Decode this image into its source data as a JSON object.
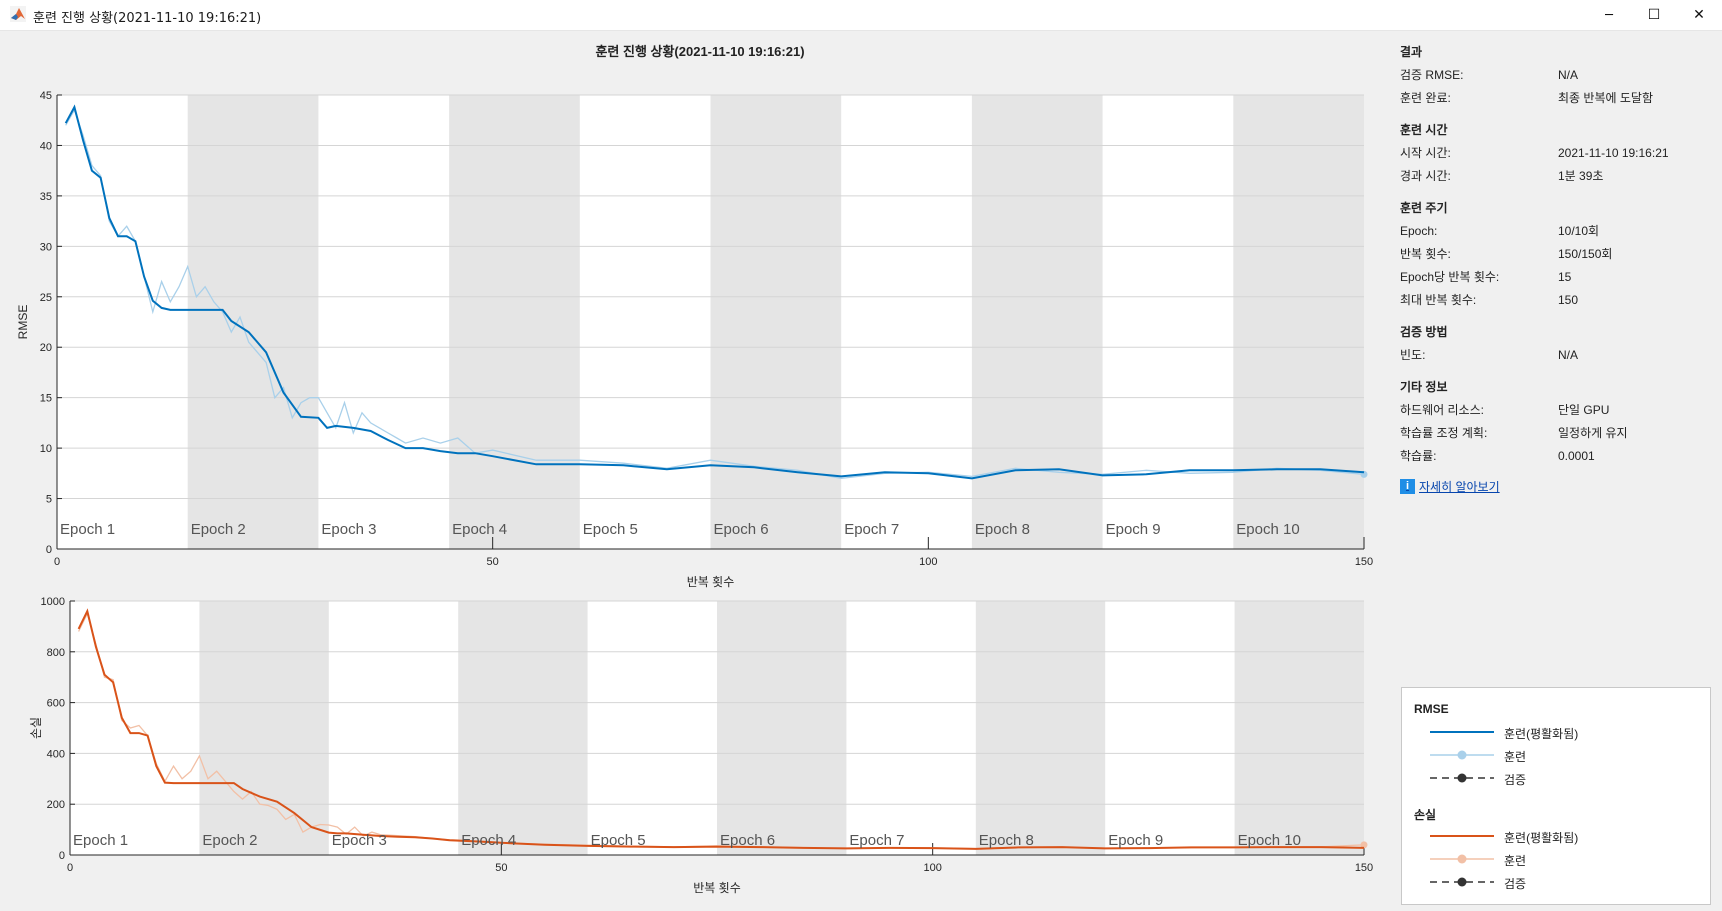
{
  "window": {
    "title": "훈련 진행 상황(2021-11-10 19:16:21)",
    "controls": {
      "minimize": "─",
      "maximize": "☐",
      "close": "✕"
    }
  },
  "plot_title": "훈련 진행 상황(2021-11-10 19:16:21)",
  "colors": {
    "rmse_smoothed": "#0072bd",
    "rmse_raw": "#a9d0ea",
    "loss_smoothed": "#d95319",
    "loss_raw": "#f2c0a6",
    "epoch_band": "#e5e5e5",
    "grid": "#d5d5d5",
    "validation": "#333333",
    "link": "#0645ad"
  },
  "chart_data": [
    {
      "type": "line",
      "id": "rmse",
      "ylabel": "RMSE",
      "xlabel": "반복 횟수",
      "xlim": [
        0,
        150
      ],
      "ylim": [
        0,
        45
      ],
      "x_ticks": [
        0,
        50,
        100,
        150
      ],
      "y_ticks": [
        0,
        5,
        10,
        15,
        20,
        25,
        30,
        35,
        40,
        45
      ],
      "grid": true,
      "epoch_labels": [
        "Epoch 1",
        "Epoch 2",
        "Epoch 3",
        "Epoch 4",
        "Epoch 5",
        "Epoch 6",
        "Epoch 7",
        "Epoch 8",
        "Epoch 9",
        "Epoch 10"
      ],
      "iterations_per_epoch": 15,
      "series": [
        {
          "name": "훈련(평활화됨)",
          "x": [
            1,
            2,
            3,
            4,
            5,
            6,
            7,
            8,
            9,
            10,
            11,
            12,
            13,
            14,
            15,
            16,
            17,
            18,
            19,
            20,
            22,
            24,
            26,
            28,
            30,
            31,
            32,
            34,
            36,
            38,
            40,
            42,
            44,
            46,
            48,
            50,
            55,
            60,
            65,
            70,
            75,
            80,
            85,
            90,
            95,
            100,
            105,
            110,
            115,
            120,
            125,
            130,
            135,
            140,
            145,
            150
          ],
          "y": [
            42.2,
            43.8,
            40.5,
            37.5,
            36.8,
            32.8,
            31,
            31,
            30.5,
            27,
            24.6,
            23.9,
            23.7,
            23.7,
            23.7,
            23.7,
            23.7,
            23.7,
            23.7,
            22.6,
            21.5,
            19.5,
            15.5,
            13.1,
            13,
            12,
            12.2,
            12,
            11.7,
            10.8,
            10,
            10,
            9.7,
            9.5,
            9.5,
            9.2,
            8.4,
            8.4,
            8.3,
            7.9,
            8.3,
            8.1,
            7.6,
            7.2,
            7.6,
            7.5,
            7,
            7.8,
            7.9,
            7.3,
            7.4,
            7.8,
            7.8,
            7.9,
            7.9,
            7.6
          ]
        },
        {
          "name": "훈련",
          "x": [
            1,
            2,
            3,
            4,
            5,
            6,
            7,
            8,
            9,
            10,
            11,
            12,
            13,
            14,
            15,
            16,
            17,
            18,
            19,
            20,
            21,
            22,
            23,
            24,
            25,
            26,
            27,
            28,
            29,
            30,
            31,
            32,
            33,
            34,
            35,
            36,
            37,
            38,
            39,
            40,
            42,
            44,
            46,
            48,
            50,
            55,
            60,
            65,
            70,
            75,
            80,
            85,
            90,
            95,
            100,
            105,
            110,
            115,
            120,
            125,
            130,
            135,
            140,
            145,
            150
          ],
          "y": [
            42,
            43.5,
            41,
            38,
            37,
            32.5,
            31,
            32,
            30.5,
            27,
            23.5,
            26.5,
            24.5,
            26,
            28,
            25,
            26,
            24.5,
            23.5,
            21.5,
            23,
            20.5,
            19.5,
            18.5,
            15,
            16,
            13,
            14.5,
            15,
            15,
            13.5,
            12,
            14.5,
            11.5,
            13.5,
            12.5,
            12,
            11.5,
            11,
            10.5,
            11,
            10.5,
            11,
            9.5,
            9.8,
            8.8,
            8.8,
            8.5,
            8.0,
            8.8,
            8.2,
            7.8,
            7.0,
            7.5,
            7.6,
            7.2,
            8.0,
            7.6,
            7.4,
            7.8,
            7.5,
            7.6,
            8.0,
            7.8,
            7.4
          ]
        },
        {
          "name": "검증",
          "x": [],
          "y": []
        }
      ]
    },
    {
      "type": "line",
      "id": "loss",
      "ylabel": "손실",
      "xlabel": "반복 횟수",
      "xlim": [
        0,
        150
      ],
      "ylim": [
        0,
        1000
      ],
      "x_ticks": [
        0,
        50,
        100,
        150
      ],
      "y_ticks": [
        0,
        200,
        400,
        600,
        800,
        1000
      ],
      "grid": true,
      "epoch_labels": [
        "Epoch 1",
        "Epoch 2",
        "Epoch 3",
        "Epoch 4",
        "Epoch 5",
        "Epoch 6",
        "Epoch 7",
        "Epoch 8",
        "Epoch 9",
        "Epoch 10"
      ],
      "iterations_per_epoch": 15,
      "series": [
        {
          "name": "훈련(평활화됨)",
          "x": [
            1,
            2,
            3,
            4,
            5,
            6,
            7,
            8,
            9,
            10,
            11,
            12,
            13,
            14,
            15,
            16,
            17,
            18,
            19,
            20,
            22,
            24,
            26,
            28,
            30,
            31,
            32,
            34,
            36,
            38,
            40,
            42,
            44,
            46,
            48,
            50,
            55,
            60,
            65,
            70,
            75,
            80,
            85,
            90,
            95,
            100,
            105,
            110,
            115,
            120,
            125,
            130,
            135,
            140,
            145,
            150
          ],
          "y": [
            890,
            960,
            820,
            710,
            680,
            540,
            480,
            480,
            470,
            350,
            285,
            283,
            283,
            283,
            283,
            283,
            283,
            283,
            283,
            260,
            230,
            210,
            165,
            110,
            88,
            85,
            85,
            80,
            75,
            72,
            70,
            65,
            58,
            55,
            52,
            48,
            40,
            36,
            33,
            31,
            33,
            31,
            28,
            26,
            28,
            27,
            24,
            30,
            31,
            26,
            27,
            30,
            30,
            31,
            31,
            28
          ]
        },
        {
          "name": "훈련",
          "x": [
            1,
            2,
            3,
            4,
            5,
            6,
            7,
            8,
            9,
            10,
            11,
            12,
            13,
            14,
            15,
            16,
            17,
            18,
            19,
            20,
            21,
            22,
            23,
            24,
            25,
            26,
            27,
            28,
            29,
            30,
            31,
            32,
            33,
            34,
            35,
            36,
            38,
            40,
            42,
            44,
            46,
            48,
            50,
            55,
            60,
            65,
            70,
            75,
            80,
            85,
            90,
            95,
            100,
            105,
            110,
            115,
            120,
            125,
            130,
            135,
            140,
            145,
            150
          ],
          "y": [
            880,
            950,
            830,
            700,
            690,
            530,
            500,
            510,
            470,
            360,
            290,
            350,
            300,
            330,
            390,
            300,
            330,
            290,
            250,
            220,
            250,
            200,
            195,
            180,
            140,
            160,
            90,
            110,
            120,
            118,
            110,
            82,
            110,
            75,
            90,
            80,
            76,
            72,
            65,
            60,
            58,
            50,
            48,
            42,
            38,
            35,
            32,
            36,
            32,
            29,
            25,
            28,
            28,
            25,
            31,
            30,
            27,
            28,
            29,
            31,
            30,
            32,
            40
          ]
        },
        {
          "name": "검증",
          "x": [],
          "y": []
        }
      ]
    }
  ],
  "info": {
    "sections": [
      {
        "title": "결과",
        "rows": [
          {
            "label": "검증 RMSE:",
            "value": "N/A"
          },
          {
            "label": "훈련 완료:",
            "value": "최종 반복에 도달함"
          }
        ]
      },
      {
        "title": "훈련 시간",
        "rows": [
          {
            "label": "시작 시간:",
            "value": "2021-11-10 19:16:21"
          },
          {
            "label": "경과 시간:",
            "value": "1분 39초"
          }
        ]
      },
      {
        "title": "훈련 주기",
        "rows": [
          {
            "label": "Epoch:",
            "value": "10/10회"
          },
          {
            "label": "반복 횟수:",
            "value": "150/150회"
          },
          {
            "label": "Epoch당 반복 횟수:",
            "value": "15"
          },
          {
            "label": "최대 반복 횟수:",
            "value": "150"
          }
        ]
      },
      {
        "title": "검증 방법",
        "rows": [
          {
            "label": "빈도:",
            "value": "N/A"
          }
        ]
      },
      {
        "title": "기타 정보",
        "rows": [
          {
            "label": "하드웨어 리소스:",
            "value": "단일 GPU"
          },
          {
            "label": "학습률 조정 계획:",
            "value": "일정하게 유지"
          },
          {
            "label": "학습률:",
            "value": "0.0001"
          }
        ]
      }
    ],
    "learn_more": "자세히 알아보기",
    "learn_more_icon": "i"
  },
  "legend": {
    "groups": [
      {
        "title": "RMSE",
        "items": [
          {
            "label": "훈련(평활화됨)",
            "style": "smoothed"
          },
          {
            "label": "훈련",
            "style": "raw"
          },
          {
            "label": "검증",
            "style": "validation"
          }
        ]
      },
      {
        "title": "손실",
        "items": [
          {
            "label": "훈련(평활화됨)",
            "style": "smoothed"
          },
          {
            "label": "훈련",
            "style": "raw"
          },
          {
            "label": "검증",
            "style": "validation"
          }
        ]
      }
    ]
  }
}
